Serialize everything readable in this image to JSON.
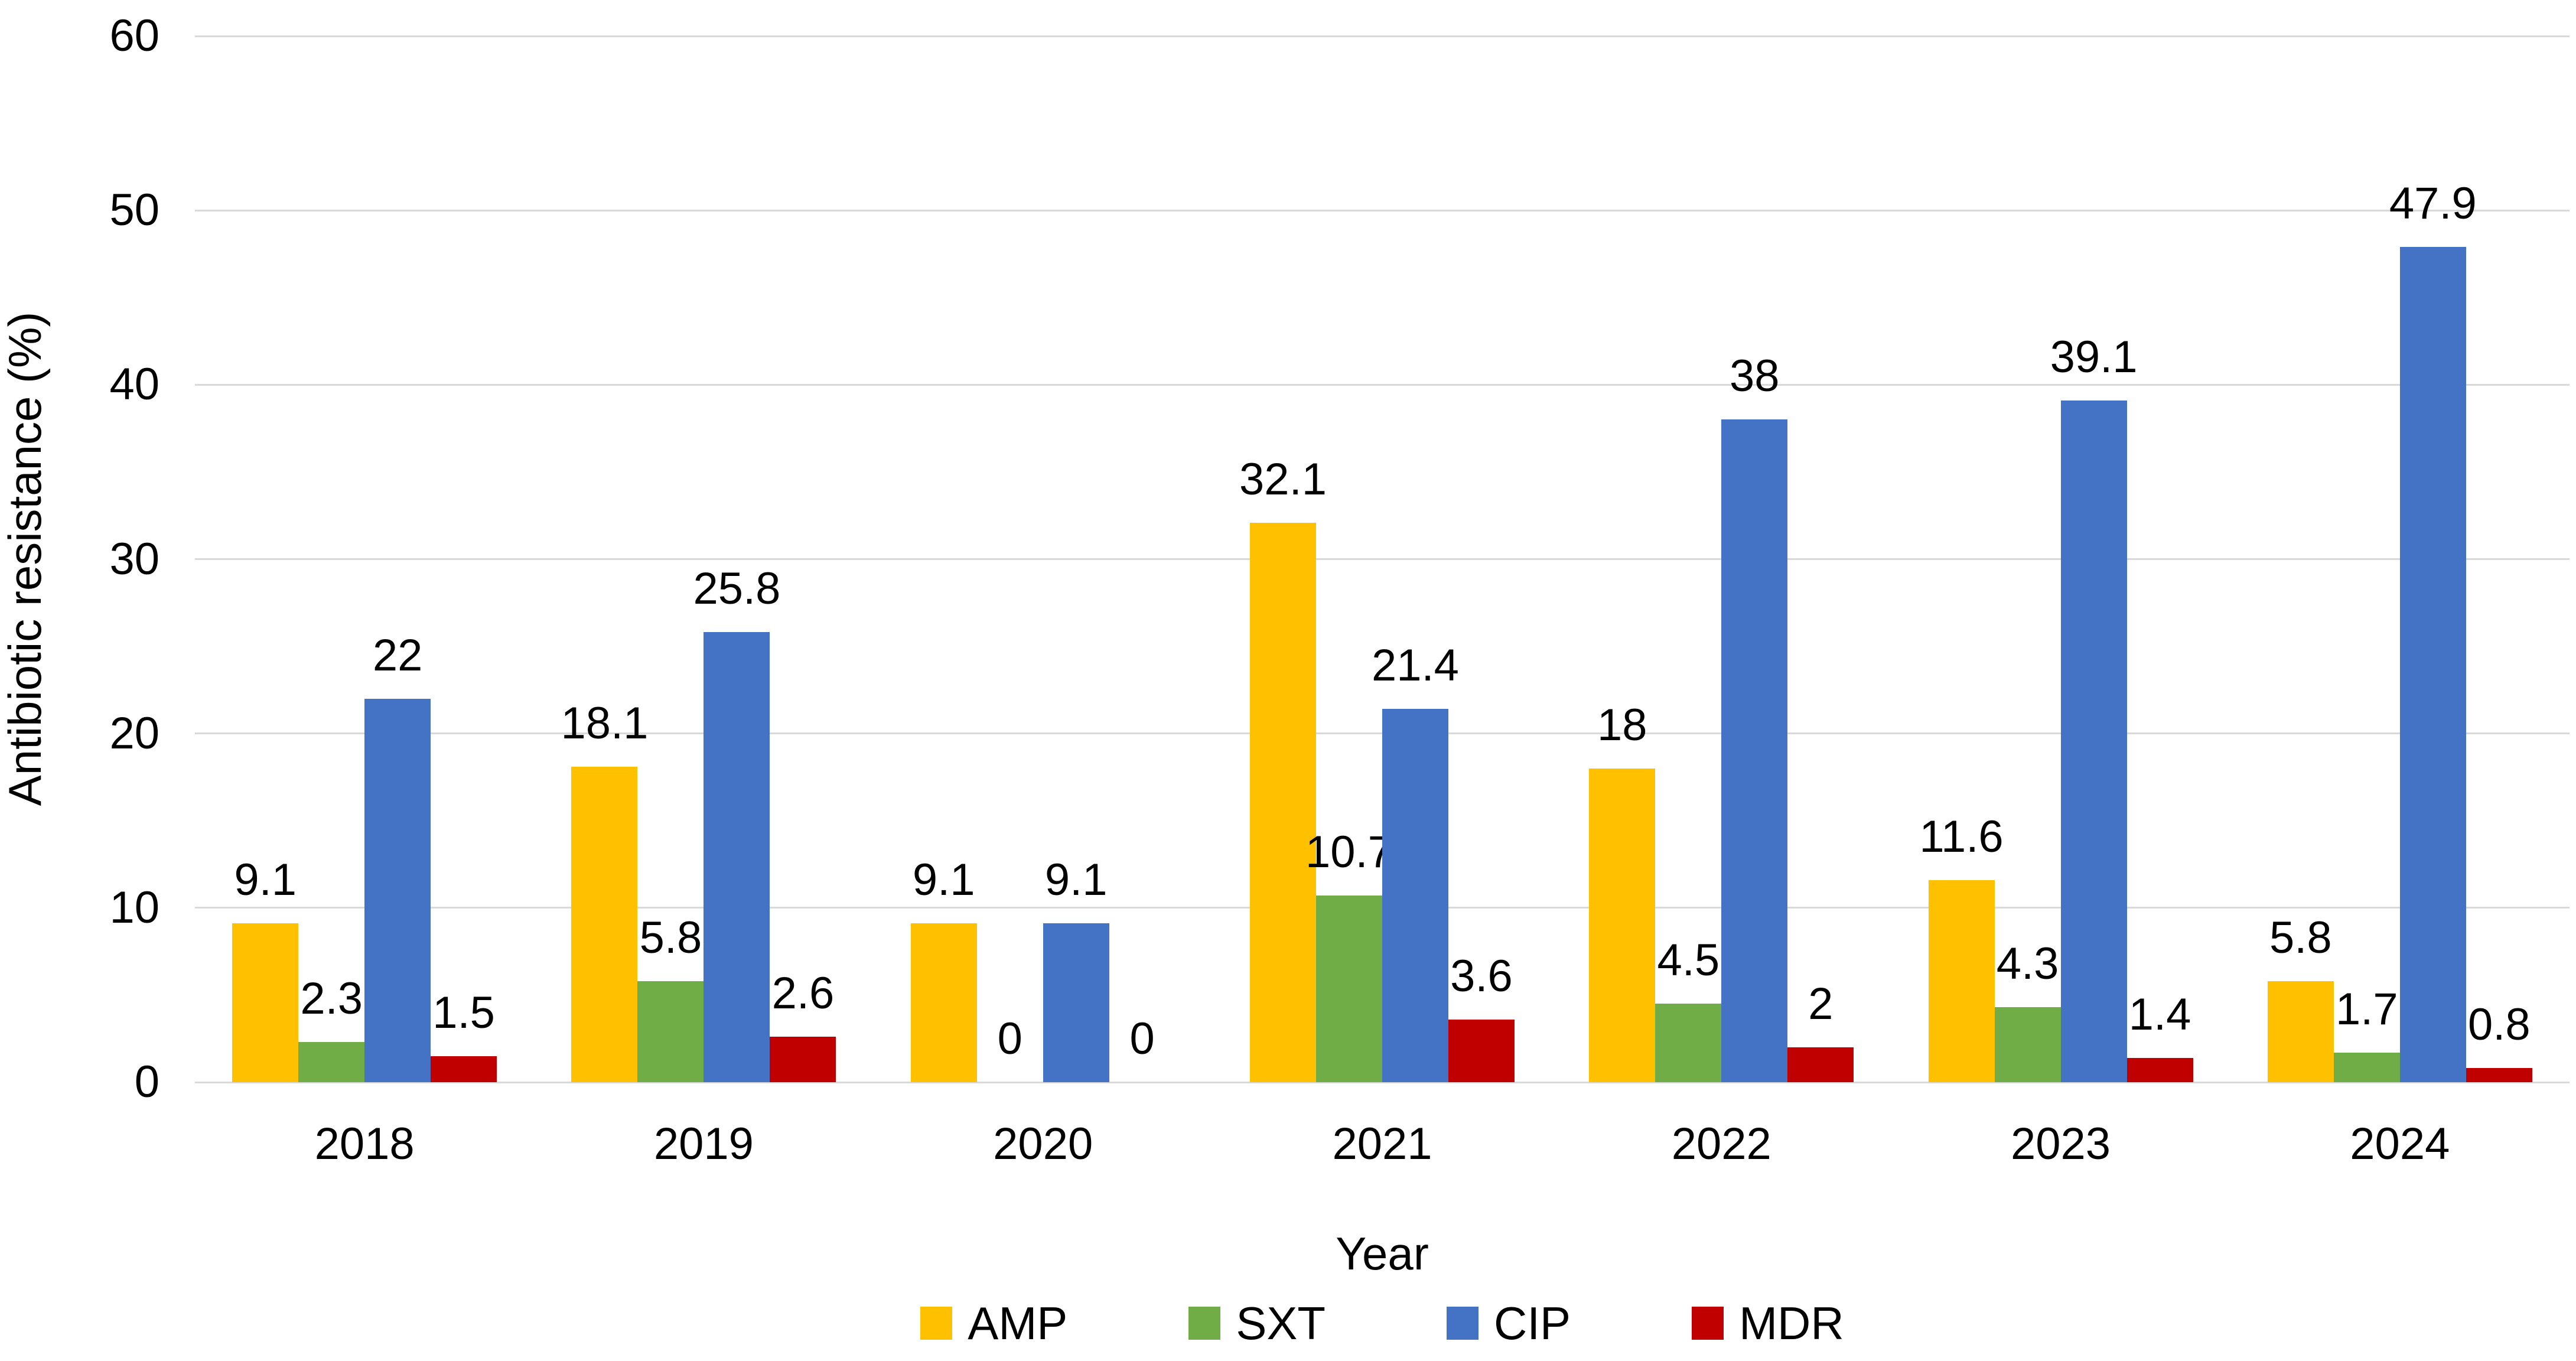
{
  "chart_data": {
    "type": "bar",
    "title": "",
    "xlabel": "Year",
    "ylabel": "Antibiotic resistance (%)",
    "categories": [
      "2018",
      "2019",
      "2020",
      "2021",
      "2022",
      "2023",
      "2024"
    ],
    "series": [
      {
        "name": "AMP",
        "color": "#FFC000",
        "values": [
          9.1,
          18.1,
          9.1,
          32.1,
          18,
          11.6,
          5.8
        ]
      },
      {
        "name": "SXT",
        "color": "#70AD47",
        "values": [
          2.3,
          5.8,
          0,
          10.7,
          4.5,
          4.3,
          1.7
        ]
      },
      {
        "name": "CIP",
        "color": "#4472C4",
        "values": [
          22,
          25.8,
          9.1,
          21.4,
          38,
          39.1,
          47.9
        ]
      },
      {
        "name": "MDR",
        "color": "#C00000",
        "values": [
          1.5,
          2.6,
          0,
          3.6,
          2,
          1.4,
          0.8
        ]
      }
    ],
    "ylim": [
      0,
      60
    ],
    "yticks": [
      0,
      10,
      20,
      30,
      40,
      50,
      60
    ],
    "grid": "horizontal",
    "gridline_color": "#D9D9D9",
    "text_color": "#000000",
    "background": "#FFFFFF",
    "legend_position": "bottom",
    "data_labels": "above-bars"
  }
}
